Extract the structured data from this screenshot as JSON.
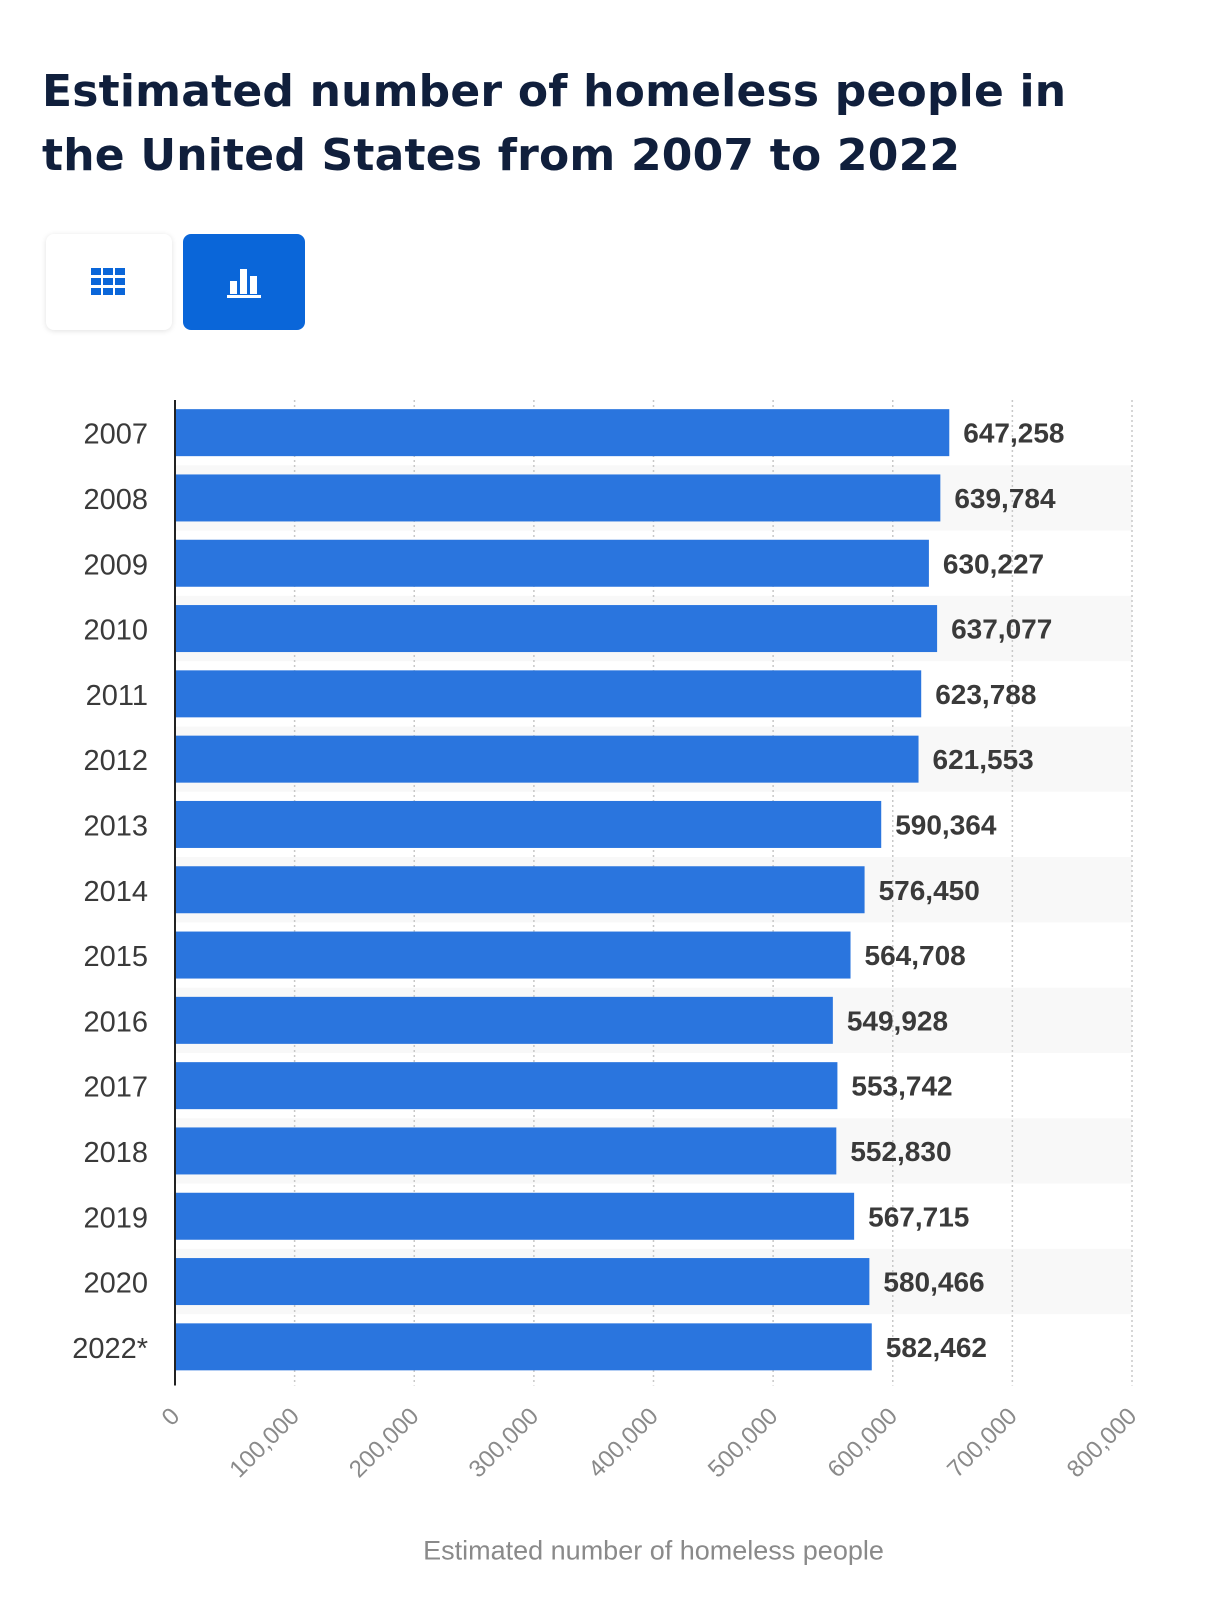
{
  "title": "Estimated number of homeless people in the United States from 2007 to 2022",
  "view_toggle": {
    "table_icon": "table-grid-icon",
    "chart_icon": "bar-chart-icon",
    "active": "chart"
  },
  "colors": {
    "bar": "#2a75de",
    "title": "#101f3c",
    "accent": "#0a66d9",
    "label": "#3a3a3a",
    "value_label": "#3a3a3a",
    "axis_title": "#8a8a8a",
    "band": "#f8f8f8"
  },
  "chart_data": {
    "type": "bar",
    "orientation": "horizontal",
    "categories": [
      "2007",
      "2008",
      "2009",
      "2010",
      "2011",
      "2012",
      "2013",
      "2014",
      "2015",
      "2016",
      "2017",
      "2018",
      "2019",
      "2020",
      "2022*"
    ],
    "values": [
      647258,
      639784,
      630227,
      637077,
      623788,
      621553,
      590364,
      576450,
      564708,
      549928,
      553742,
      552830,
      567715,
      580466,
      582462
    ],
    "value_labels": [
      "647,258",
      "639,784",
      "630,227",
      "637,077",
      "623,788",
      "621,553",
      "590,364",
      "576,450",
      "564,708",
      "549,928",
      "553,742",
      "552,830",
      "567,715",
      "580,466",
      "582,462"
    ],
    "xlim": [
      0,
      800000
    ],
    "x_ticks": [
      0,
      100000,
      200000,
      300000,
      400000,
      500000,
      600000,
      700000,
      800000
    ],
    "x_tick_labels": [
      "0",
      "100,000",
      "200,000",
      "300,000",
      "400,000",
      "500,000",
      "600,000",
      "700,000",
      "800,000"
    ],
    "xlabel": "Estimated number of homeless people",
    "ylabel": "",
    "grid": true
  }
}
